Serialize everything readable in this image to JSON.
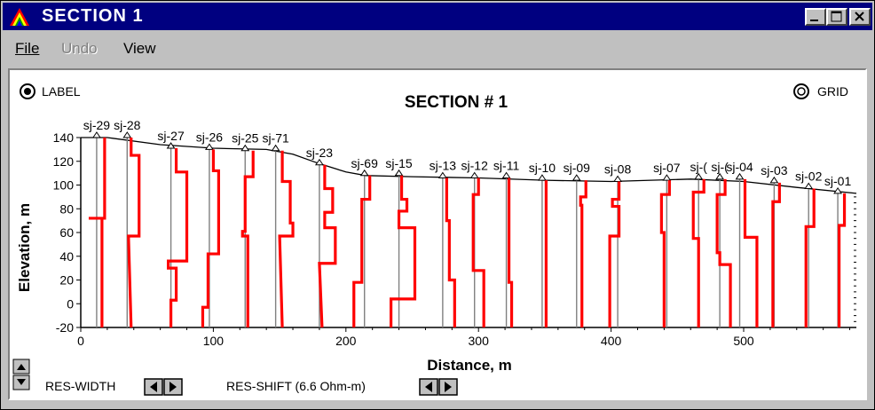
{
  "window": {
    "title": "SECTION 1",
    "buttons": [
      "minimize",
      "maximize",
      "close"
    ]
  },
  "menu": {
    "items": [
      {
        "label": "File",
        "enabled": true
      },
      {
        "label": "Undo",
        "enabled": false
      },
      {
        "label": "View",
        "enabled": true
      }
    ]
  },
  "controls": {
    "label_toggle": "LABEL",
    "grid_toggle": "GRID",
    "res_width_label": "RES-WIDTH",
    "res_shift_label": "RES-SHIFT (6.6 Ohm-m)"
  },
  "chart_data": {
    "type": "line",
    "title": "SECTION # 1",
    "xlabel": "Distance, m",
    "ylabel": "Elevation, m",
    "xlim": [
      0,
      585
    ],
    "ylim": [
      -20,
      140
    ],
    "x_ticks": [
      0,
      100,
      200,
      300,
      400,
      500
    ],
    "y_ticks": [
      -20,
      0,
      20,
      40,
      60,
      80,
      100,
      120,
      140
    ],
    "colors": {
      "profile": "#ff0000",
      "borehole": "#808080",
      "surface": "#000000"
    },
    "surface": [
      [
        0,
        140
      ],
      [
        20,
        140
      ],
      [
        60,
        134
      ],
      [
        100,
        131
      ],
      [
        140,
        130
      ],
      [
        160,
        126
      ],
      [
        180,
        118
      ],
      [
        200,
        111
      ],
      [
        215,
        108
      ],
      [
        250,
        107
      ],
      [
        300,
        106
      ],
      [
        350,
        104
      ],
      [
        400,
        103
      ],
      [
        430,
        104
      ],
      [
        460,
        105
      ],
      [
        500,
        103
      ],
      [
        540,
        98
      ],
      [
        585,
        93
      ]
    ],
    "soundings": [
      {
        "name": "sj-29",
        "x": 12,
        "top": 140,
        "profile": [
          [
            140,
            18
          ],
          [
            72,
            18
          ],
          [
            72,
            6
          ],
          [
            72,
            16
          ],
          [
            -20,
            16
          ]
        ]
      },
      {
        "name": "sj-28",
        "x": 35,
        "top": 140,
        "profile": [
          [
            140,
            38
          ],
          [
            125,
            38
          ],
          [
            125,
            44
          ],
          [
            57,
            44
          ],
          [
            57,
            36
          ],
          [
            -20,
            38
          ]
        ]
      },
      {
        "name": "sj-27",
        "x": 68,
        "top": 131,
        "profile": [
          [
            131,
            72
          ],
          [
            111,
            72
          ],
          [
            111,
            80
          ],
          [
            36,
            80
          ],
          [
            36,
            66
          ],
          [
            30,
            66
          ],
          [
            30,
            72
          ],
          [
            3,
            72
          ],
          [
            3,
            68
          ],
          [
            -20,
            68
          ]
        ]
      },
      {
        "name": "sj-26",
        "x": 97,
        "top": 130,
        "profile": [
          [
            130,
            100
          ],
          [
            112,
            100
          ],
          [
            112,
            104
          ],
          [
            42,
            104
          ],
          [
            42,
            96
          ],
          [
            -3,
            96
          ],
          [
            -3,
            92
          ],
          [
            -20,
            92
          ]
        ]
      },
      {
        "name": "sj-25",
        "x": 124,
        "top": 129,
        "profile": [
          [
            129,
            130
          ],
          [
            107,
            130
          ],
          [
            107,
            124
          ],
          [
            61,
            124
          ],
          [
            61,
            122
          ],
          [
            57,
            122
          ],
          [
            57,
            126
          ],
          [
            -20,
            126
          ]
        ]
      },
      {
        "name": "sj-71",
        "x": 147,
        "top": 129,
        "profile": [
          [
            129,
            152
          ],
          [
            103,
            152
          ],
          [
            103,
            158
          ],
          [
            68,
            158
          ],
          [
            68,
            160
          ],
          [
            57,
            160
          ],
          [
            57,
            150
          ],
          [
            -20,
            152
          ]
        ]
      },
      {
        "name": "sj-23",
        "x": 180,
        "top": 117,
        "profile": [
          [
            117,
            184
          ],
          [
            97,
            184
          ],
          [
            97,
            190
          ],
          [
            77,
            190
          ],
          [
            77,
            184
          ],
          [
            64,
            184
          ],
          [
            64,
            192
          ],
          [
            34,
            192
          ],
          [
            34,
            180
          ],
          [
            -20,
            182
          ]
        ]
      },
      {
        "name": "sj-69",
        "x": 214,
        "top": 108,
        "profile": [
          [
            108,
            218
          ],
          [
            88,
            218
          ],
          [
            88,
            212
          ],
          [
            18,
            212
          ],
          [
            18,
            206
          ],
          [
            -20,
            206
          ]
        ]
      },
      {
        "name": "sj-15",
        "x": 240,
        "top": 108,
        "profile": [
          [
            108,
            242
          ],
          [
            88,
            242
          ],
          [
            88,
            246
          ],
          [
            78,
            246
          ],
          [
            78,
            240
          ],
          [
            64,
            240
          ],
          [
            64,
            252
          ],
          [
            4,
            252
          ],
          [
            4,
            234
          ],
          [
            -20,
            234
          ]
        ]
      },
      {
        "name": "sj-13",
        "x": 273,
        "top": 106,
        "profile": [
          [
            106,
            276
          ],
          [
            70,
            276
          ],
          [
            70,
            278
          ],
          [
            20,
            278
          ],
          [
            20,
            282
          ],
          [
            -20,
            282
          ]
        ]
      },
      {
        "name": "sj-12",
        "x": 297,
        "top": 106,
        "profile": [
          [
            106,
            300
          ],
          [
            92,
            300
          ],
          [
            92,
            296
          ],
          [
            28,
            296
          ],
          [
            28,
            304
          ],
          [
            -20,
            304
          ]
        ]
      },
      {
        "name": "sj-11",
        "x": 321,
        "top": 106,
        "profile": [
          [
            106,
            323
          ],
          [
            18,
            323
          ],
          [
            18,
            325
          ],
          [
            -20,
            325
          ]
        ]
      },
      {
        "name": "sj-10",
        "x": 348,
        "top": 104,
        "profile": [
          [
            104,
            351
          ],
          [
            -20,
            351
          ]
        ]
      },
      {
        "name": "sj-09",
        "x": 374,
        "top": 104,
        "profile": [
          [
            104,
            381
          ],
          [
            90,
            381
          ],
          [
            90,
            377
          ],
          [
            83,
            377
          ],
          [
            83,
            378
          ],
          [
            -20,
            378
          ]
        ]
      },
      {
        "name": "sj-08",
        "x": 405,
        "top": 103,
        "profile": [
          [
            103,
            406
          ],
          [
            88,
            406
          ],
          [
            88,
            401
          ],
          [
            82,
            401
          ],
          [
            82,
            406
          ],
          [
            57,
            406
          ],
          [
            57,
            399
          ],
          [
            -20,
            399
          ]
        ]
      },
      {
        "name": "sj-07",
        "x": 442,
        "top": 104,
        "profile": [
          [
            104,
            444
          ],
          [
            92,
            444
          ],
          [
            92,
            438
          ],
          [
            60,
            438
          ],
          [
            60,
            440
          ],
          [
            -20,
            440
          ]
        ]
      },
      {
        "name": "sj-06",
        "x": 466,
        "top": 105,
        "profile": [
          [
            105,
            470
          ],
          [
            94,
            470
          ],
          [
            94,
            462
          ],
          [
            55,
            462
          ],
          [
            55,
            466
          ],
          [
            -20,
            466
          ]
        ]
      },
      {
        "name": "sj-05",
        "x": 482,
        "top": 105,
        "profile": [
          [
            105,
            486
          ],
          [
            92,
            486
          ],
          [
            92,
            480
          ],
          [
            43,
            480
          ],
          [
            43,
            482
          ],
          [
            33,
            482
          ],
          [
            33,
            490
          ],
          [
            -20,
            490
          ]
        ]
      },
      {
        "name": "sj-04",
        "x": 497,
        "top": 105,
        "profile": [
          [
            105,
            501
          ],
          [
            56,
            501
          ],
          [
            56,
            510
          ],
          [
            -20,
            510
          ]
        ]
      },
      {
        "name": "sj-03",
        "x": 523,
        "top": 102,
        "profile": [
          [
            102,
            527
          ],
          [
            86,
            527
          ],
          [
            86,
            522
          ],
          [
            -20,
            522
          ]
        ]
      },
      {
        "name": "sj-02",
        "x": 549,
        "top": 97,
        "profile": [
          [
            97,
            553
          ],
          [
            65,
            553
          ],
          [
            65,
            547
          ],
          [
            -20,
            547
          ]
        ]
      },
      {
        "name": "sj-01",
        "x": 571,
        "top": 93,
        "profile": [
          [
            93,
            576
          ],
          [
            66,
            576
          ],
          [
            66,
            572
          ],
          [
            -20,
            572
          ]
        ]
      }
    ],
    "label_texts": [
      "sj-29",
      "sj-28",
      "sj-27",
      "sj-26",
      "sj-25",
      "sj-71",
      "sj-23",
      "sj-69",
      "sj-15",
      "sj-13",
      "sj-12",
      "sj-11",
      "sj-10",
      "sj-09",
      "sj-08",
      "sj-07",
      "sj-(",
      "sj-(",
      "sj-04",
      "sj-03",
      "sj-02",
      "sj-01"
    ]
  }
}
